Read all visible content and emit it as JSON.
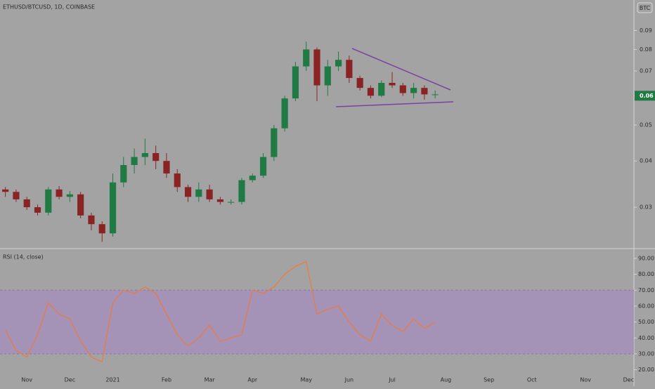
{
  "header": {
    "symbol": "ETHUSD/BTCUSD, 1D, COINBASE",
    "currency": "BTC"
  },
  "chart_data": [
    {
      "type": "candlestick",
      "categories": [
        null,
        null,
        "Nov",
        null,
        null,
        null,
        "Dec",
        null,
        null,
        null,
        "2021",
        null,
        null,
        null,
        null,
        "Feb",
        null,
        null,
        null,
        "Mar",
        null,
        null,
        null,
        "Apr",
        null,
        null,
        null,
        null,
        "May",
        null,
        null,
        null,
        "Jun",
        null,
        null,
        null,
        "Jul",
        null,
        null,
        null,
        null,
        "Aug",
        null,
        null,
        null,
        "Sep",
        null,
        null,
        null,
        "Oct",
        null,
        null,
        null,
        null,
        "Nov",
        null,
        null,
        null,
        "Dec"
      ],
      "open": [
        0.0335,
        0.033,
        0.0315,
        0.03,
        0.029,
        0.0335,
        0.032,
        0.0325,
        0.0285,
        0.027,
        0.0255,
        0.035,
        0.039,
        0.041,
        0.042,
        0.04,
        0.037,
        0.034,
        0.032,
        0.0335,
        0.0315,
        0.031,
        0.031,
        0.0355,
        0.0365,
        0.041,
        0.049,
        0.059,
        0.072,
        0.08,
        0.064,
        0.072,
        0.075,
        0.067,
        0.063,
        0.06,
        0.065,
        0.064,
        0.061,
        0.063,
        0.0605,
        null,
        null,
        null,
        null,
        null,
        null,
        null,
        null,
        null,
        null,
        null,
        null,
        null,
        null,
        null,
        null,
        null,
        null
      ],
      "high": [
        0.034,
        0.0335,
        0.032,
        0.0305,
        0.034,
        0.0342,
        0.0332,
        0.033,
        0.029,
        0.0275,
        0.037,
        0.041,
        0.0432,
        0.046,
        0.044,
        0.042,
        0.038,
        0.0345,
        0.035,
        0.0345,
        0.032,
        0.0315,
        0.036,
        0.037,
        0.042,
        0.05,
        0.06,
        0.074,
        0.084,
        0.081,
        0.075,
        0.079,
        0.077,
        0.068,
        0.064,
        0.066,
        0.0695,
        0.065,
        0.065,
        0.064,
        0.062,
        null,
        null,
        null,
        null,
        null,
        null,
        null,
        null,
        null,
        null,
        null,
        null,
        null,
        null,
        null,
        null,
        null,
        null
      ],
      "low": [
        0.032,
        0.031,
        0.0295,
        0.0285,
        0.0285,
        0.0315,
        0.031,
        0.028,
        0.026,
        0.0242,
        0.025,
        0.034,
        0.037,
        0.039,
        0.038,
        0.036,
        0.033,
        0.031,
        0.031,
        0.031,
        0.0305,
        0.0305,
        0.0305,
        0.035,
        0.036,
        0.04,
        0.048,
        0.058,
        0.07,
        0.058,
        0.06,
        0.07,
        0.065,
        0.062,
        0.059,
        0.0595,
        0.063,
        0.06,
        0.059,
        0.0585,
        0.059,
        null,
        null,
        null,
        null,
        null,
        null,
        null,
        null,
        null,
        null,
        null,
        null,
        null,
        null,
        null,
        null,
        null,
        null
      ],
      "close": [
        0.033,
        0.0315,
        0.03,
        0.029,
        0.0335,
        0.032,
        0.0325,
        0.0285,
        0.027,
        0.0255,
        0.035,
        0.039,
        0.041,
        0.042,
        0.04,
        0.037,
        0.034,
        0.032,
        0.0335,
        0.0315,
        0.031,
        0.031,
        0.0355,
        0.0365,
        0.041,
        0.049,
        0.059,
        0.072,
        0.08,
        0.064,
        0.072,
        0.075,
        0.067,
        0.063,
        0.06,
        0.065,
        0.064,
        0.061,
        0.063,
        0.0605,
        0.0605,
        null,
        null,
        null,
        null,
        null,
        null,
        null,
        null,
        null,
        null,
        null,
        null,
        null,
        null,
        null,
        null,
        null,
        null
      ],
      "up_color": "#1f7a44",
      "down_color": "#8a2424",
      "log_scale": true,
      "ylim": [
        0.0233,
        0.1088
      ],
      "yticks": [
        0.03,
        0.04,
        0.05,
        0.06,
        0.07,
        0.08,
        0.09
      ],
      "last_price": 0.06
    },
    {
      "type": "line",
      "title": "RSI (14, close)",
      "values": [
        45,
        32,
        28,
        42,
        62,
        55,
        52,
        38,
        28,
        25,
        62,
        70,
        68,
        72,
        68,
        55,
        42,
        35,
        40,
        48,
        38,
        40,
        42,
        70,
        68,
        72,
        80,
        85,
        88,
        55,
        58,
        60,
        50,
        42,
        38,
        55,
        48,
        44,
        52,
        46,
        50,
        null,
        null,
        null,
        null,
        null,
        null,
        null,
        null,
        null,
        null,
        null,
        null,
        null,
        null,
        null,
        null,
        null,
        null
      ],
      "color": "#ee7a3c",
      "ylim": [
        16.3,
        95.7
      ],
      "band": [
        30,
        70
      ],
      "yticks": [
        {
          "value": 20,
          "label": "20.00"
        },
        {
          "value": 30,
          "label": "30.00"
        },
        {
          "value": 40,
          "label": "40.00"
        },
        {
          "value": 50,
          "label": "50.00"
        },
        {
          "value": 60,
          "label": "60.00"
        },
        {
          "value": 70,
          "label": "70.00"
        },
        {
          "value": 80,
          "label": "80.00"
        },
        {
          "value": 90,
          "label": "90.00"
        }
      ]
    }
  ]
}
